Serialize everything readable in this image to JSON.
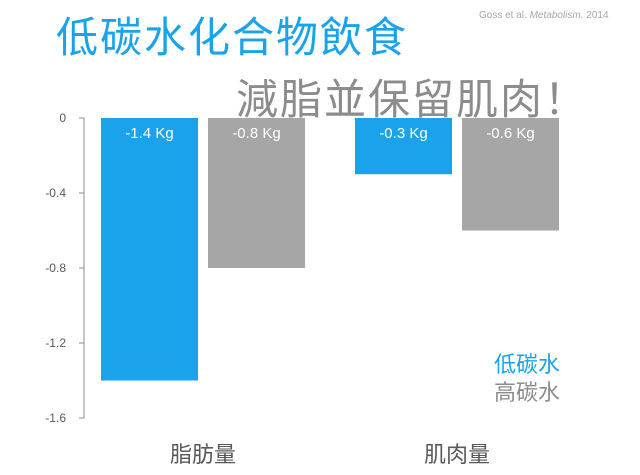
{
  "title_line1": "低碳水化合物飲食",
  "title_line2": "減脂並保留肌肉！",
  "citation": {
    "authors": "Goss et al.",
    "journal": "Metabolism.",
    "year": "2014"
  },
  "colors": {
    "low_carb": "#1aa3ea",
    "high_carb": "#a6a6a6",
    "axis": "#8c8c8c",
    "text": "#595959"
  },
  "legend": {
    "low_carb": "低碳水",
    "high_carb": "高碳水"
  },
  "chart_data": {
    "type": "bar",
    "categories": [
      "脂肪量",
      "肌肉量"
    ],
    "series": [
      {
        "name": "低碳水",
        "values": [
          -1.4,
          -0.3
        ],
        "labels": [
          "-1.4 Kg",
          "-0.3 Kg"
        ]
      },
      {
        "name": "高碳水",
        "values": [
          -0.8,
          -0.6
        ],
        "labels": [
          "-0.8 Kg",
          "-0.6 Kg"
        ]
      }
    ],
    "ylim": [
      -1.6,
      0
    ],
    "yticks": [
      "0",
      "-0.4",
      "-0.8",
      "-1.2",
      "-1.6"
    ],
    "ytick_values": [
      0,
      -0.4,
      -0.8,
      -1.2,
      -1.6
    ],
    "grid": false,
    "legend_position": "bottom-right"
  }
}
